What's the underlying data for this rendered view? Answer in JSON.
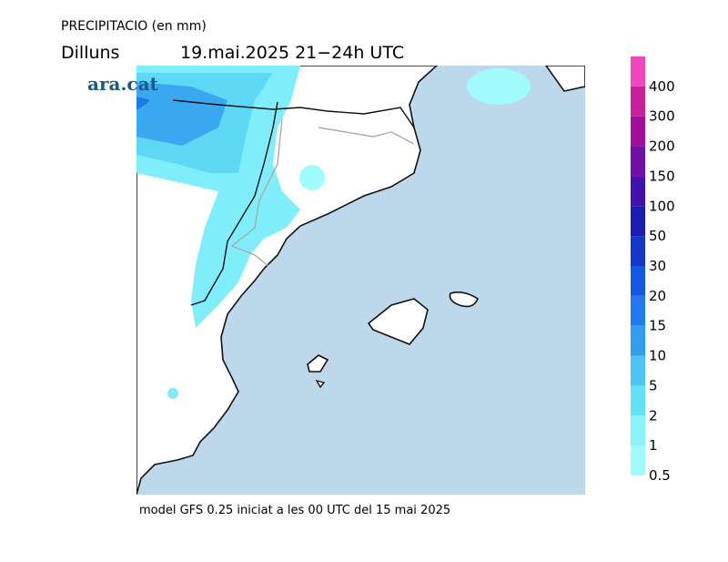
{
  "title": "PRECIPITACIO (en mm)",
  "subtitle": {
    "day": "Dilluns",
    "period": "19.mai.2025 21−24h UTC"
  },
  "logo": "ara.cat",
  "legend": {
    "levels": [
      {
        "label": "0.5",
        "color": "#a0fcfc"
      },
      {
        "label": "1",
        "color": "#86f4fa"
      },
      {
        "label": "2",
        "color": "#62e2f6"
      },
      {
        "label": "5",
        "color": "#4cc4f4"
      },
      {
        "label": "10",
        "color": "#329ef0"
      },
      {
        "label": "15",
        "color": "#1e7af0"
      },
      {
        "label": "20",
        "color": "#1458e6"
      },
      {
        "label": "30",
        "color": "#1638c8"
      },
      {
        "label": "50",
        "color": "#1c1cb4"
      },
      {
        "label": "100",
        "color": "#4212b0"
      },
      {
        "label": "150",
        "color": "#7010a8"
      },
      {
        "label": "200",
        "color": "#a0109c"
      },
      {
        "label": "300",
        "color": "#c8209c"
      },
      {
        "label": "400",
        "color": "#f046c0"
      }
    ]
  },
  "footer": "model GFS 0.25 iniciat a les 00 UTC del 15 mai 2025"
}
